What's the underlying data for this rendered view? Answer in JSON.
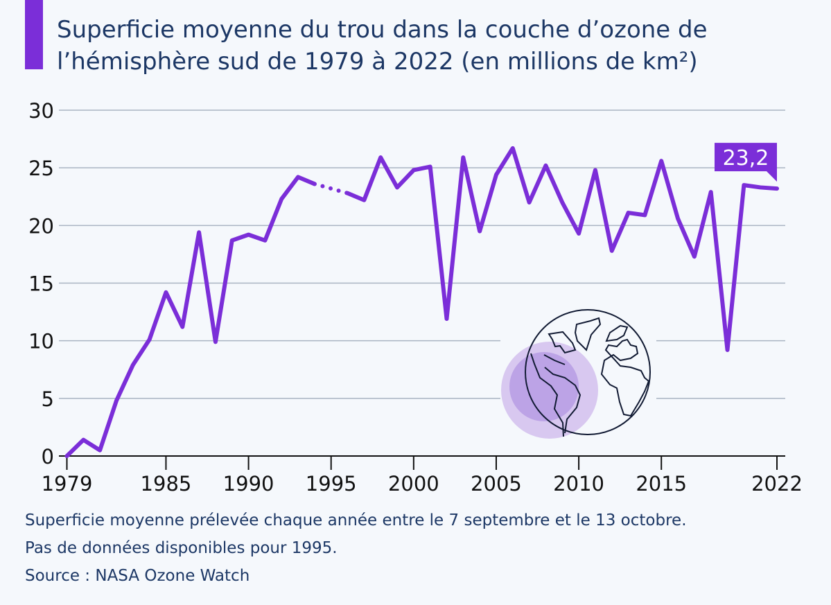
{
  "title_line1": "Superficie moyenne du trou dans la couche d’ozone de",
  "title_line2": "l’hémisphère sud de 1979 à 2022 (en millions de km²)",
  "footnote_line1": "Superficie moyenne prélevée chaque année entre le 7 septembre et le 13 octobre.",
  "footnote_line2": "Pas de données disponibles pour 1995.",
  "source": "Source : NASA Ozone Watch",
  "colors": {
    "line": "#7b2ed8",
    "title": "#1c3765",
    "grid": "#a9b4c2",
    "background": "#f5f8fc"
  },
  "chart_data": {
    "type": "line",
    "title": "Superficie moyenne du trou dans la couche d’ozone de l’hémisphère sud de 1979 à 2022 (en millions de km²)",
    "xlabel": "",
    "ylabel": "",
    "xlim": [
      1979,
      2022
    ],
    "ylim": [
      0,
      30
    ],
    "grid": true,
    "y_ticks": [
      "0",
      "5",
      "10",
      "15",
      "20",
      "25",
      "30"
    ],
    "x_ticks": [
      "1979",
      "1985",
      "1990",
      "1995",
      "2000",
      "2005",
      "2010",
      "2015",
      "2022"
    ],
    "x": [
      1979,
      1980,
      1981,
      1982,
      1983,
      1984,
      1985,
      1986,
      1987,
      1988,
      1989,
      1990,
      1991,
      1992,
      1993,
      1994,
      1995,
      1996,
      1997,
      1998,
      1999,
      2000,
      2001,
      2002,
      2003,
      2004,
      2005,
      2006,
      2007,
      2008,
      2009,
      2010,
      2011,
      2012,
      2013,
      2014,
      2015,
      2016,
      2017,
      2018,
      2019,
      2020,
      2021,
      2022
    ],
    "values": [
      0.0,
      1.4,
      0.5,
      4.8,
      7.9,
      10.1,
      14.2,
      11.2,
      19.4,
      9.9,
      18.7,
      19.2,
      18.7,
      22.3,
      24.2,
      23.6,
      null,
      22.8,
      22.2,
      25.9,
      23.3,
      24.8,
      25.1,
      11.9,
      25.9,
      19.5,
      24.4,
      26.7,
      22.0,
      25.2,
      22.0,
      19.3,
      24.8,
      17.8,
      21.1,
      20.9,
      25.6,
      20.6,
      17.3,
      22.9,
      9.2,
      23.5,
      23.3,
      23.2
    ],
    "missing_segment_style": "dotted",
    "annotation": {
      "year": 2022,
      "label": "23,2"
    }
  }
}
